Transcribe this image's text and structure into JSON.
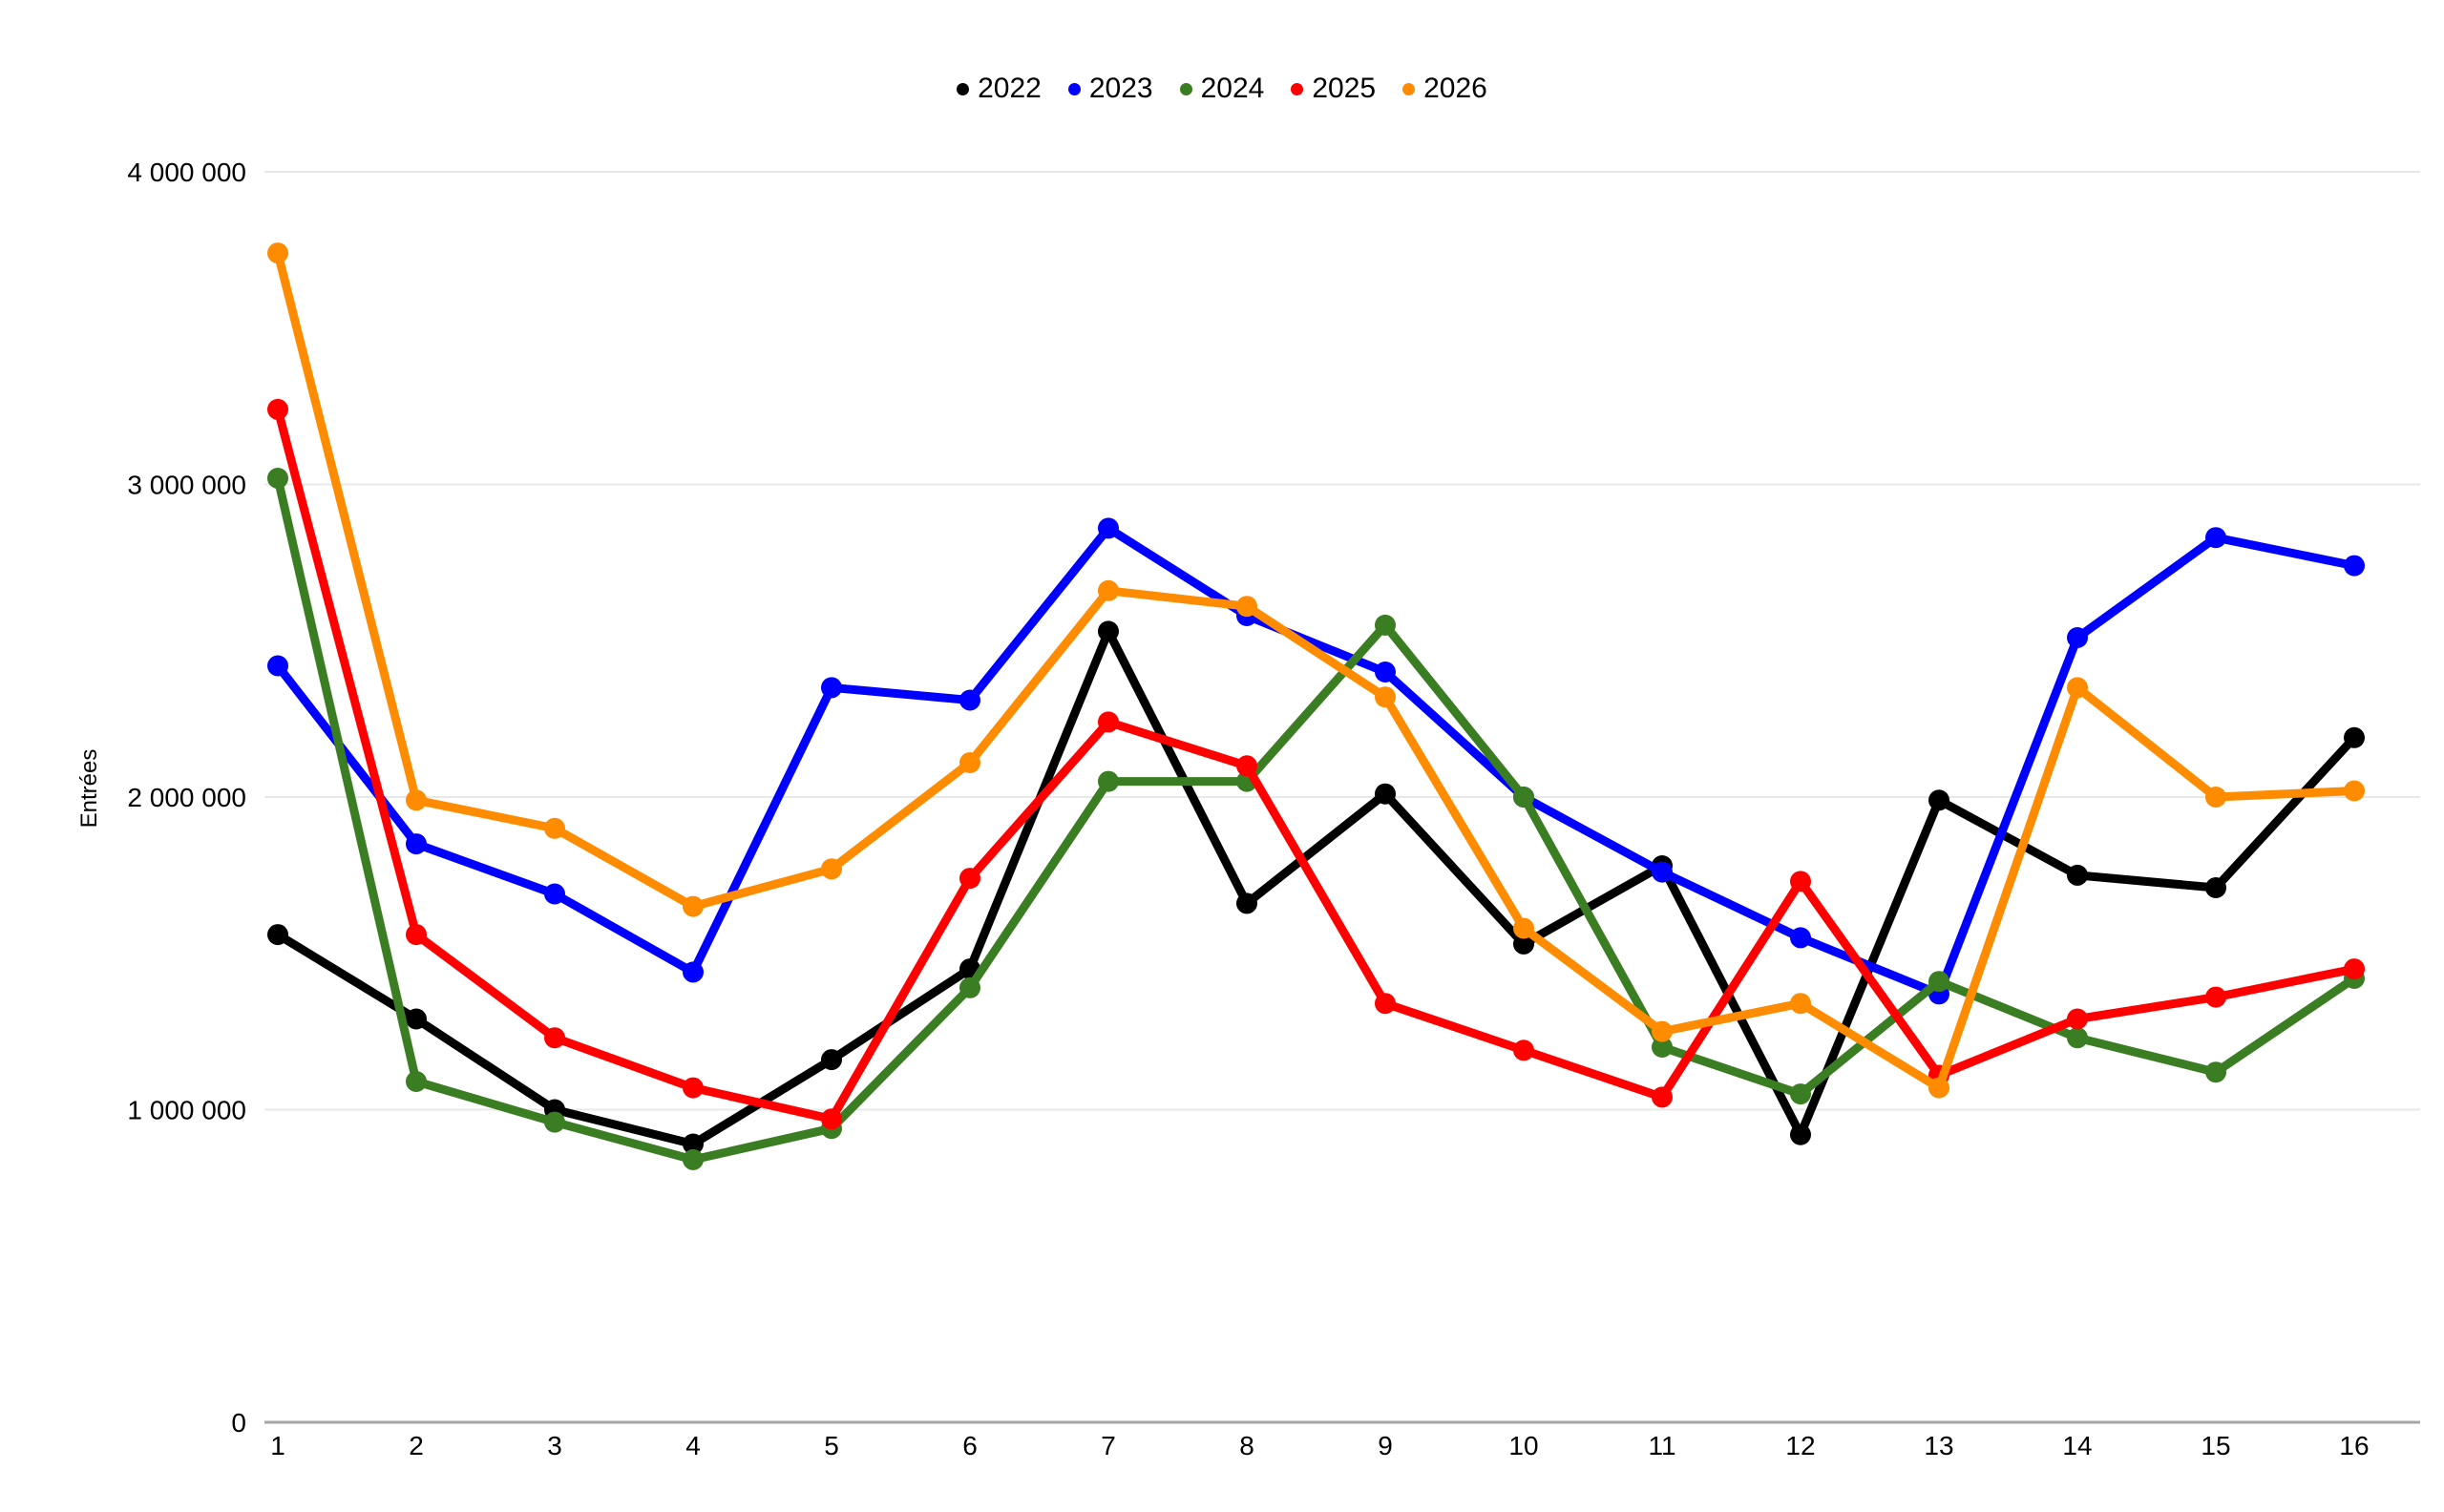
{
  "chart_data": {
    "type": "line",
    "title": "",
    "xlabel": "",
    "ylabel": "Entrées",
    "categories": [
      "1",
      "2",
      "3",
      "4",
      "5",
      "6",
      "7",
      "8",
      "9",
      "10",
      "11",
      "12",
      "13",
      "14",
      "15",
      "16"
    ],
    "ylim": [
      0,
      4000000
    ],
    "y_ticks": [
      {
        "value": 0,
        "label": "0"
      },
      {
        "value": 1000000,
        "label": "1 000 000"
      },
      {
        "value": 2000000,
        "label": "2 000 000"
      },
      {
        "value": 3000000,
        "label": "3 000 000"
      },
      {
        "value": 4000000,
        "label": "4 000 000"
      }
    ],
    "grid": "horizontal",
    "legend_position": "top-center",
    "marker": "circle",
    "series": [
      {
        "name": "2022",
        "color": "#000000",
        "values": [
          1560000,
          1290000,
          1000000,
          890000,
          1160000,
          1450000,
          2530000,
          1660000,
          2010000,
          1530000,
          1780000,
          920000,
          1990000,
          1750000,
          1710000,
          2190000
        ]
      },
      {
        "name": "2023",
        "color": "#0000FF",
        "values": [
          2420000,
          1850000,
          1690000,
          1440000,
          2350000,
          2310000,
          2860000,
          2580000,
          2400000,
          2000000,
          1760000,
          1550000,
          1370000,
          2510000,
          2830000,
          2740000
        ]
      },
      {
        "name": "2024",
        "color": "#3A7D23",
        "values": [
          3020000,
          1090000,
          960000,
          840000,
          940000,
          1390000,
          2050000,
          2050000,
          2550000,
          2000000,
          1200000,
          1050000,
          1410000,
          1230000,
          1120000,
          1420000
        ]
      },
      {
        "name": "2025",
        "color": "#FF0000",
        "values": [
          3240000,
          1560000,
          1230000,
          1070000,
          970000,
          1740000,
          2240000,
          2100000,
          1340000,
          1190000,
          1040000,
          1730000,
          1110000,
          1290000,
          1360000,
          1450000
        ]
      },
      {
        "name": "2026",
        "color": "#FF8C00",
        "values": [
          3740000,
          1990000,
          1900000,
          1650000,
          1770000,
          2110000,
          2660000,
          2610000,
          2320000,
          1580000,
          1250000,
          1340000,
          1070000,
          2350000,
          2000000,
          2020000
        ]
      }
    ],
    "grid_color": "#E8E8E8",
    "axis_color": "#A6A6A6",
    "text_color": "#000000",
    "background": "#FFFFFF"
  }
}
